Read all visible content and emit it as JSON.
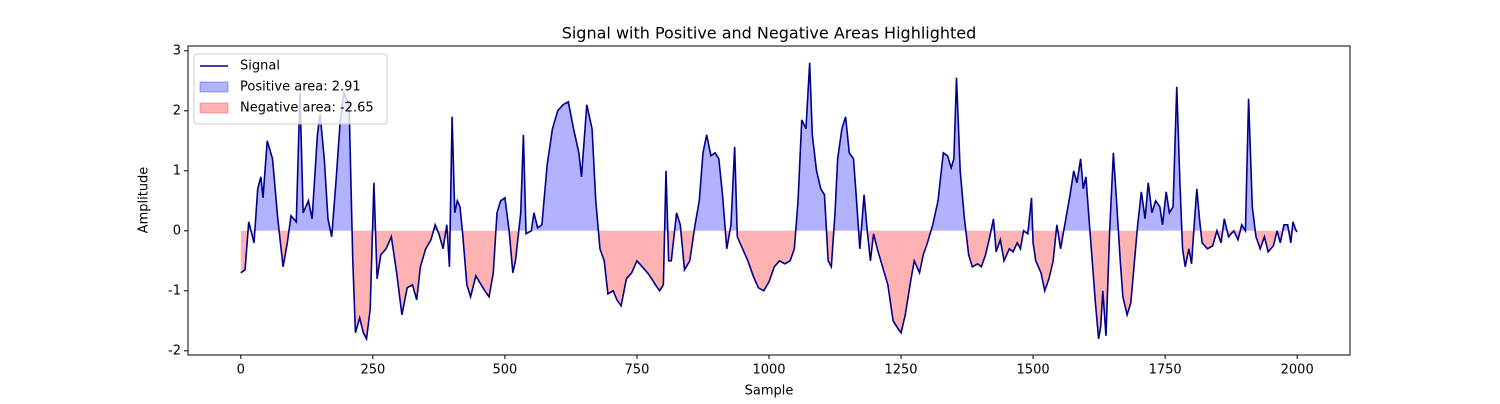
{
  "chart_data": {
    "type": "line",
    "title": "Signal with Positive and Negative Areas Highlighted",
    "x_label": "Sample",
    "y_label": "Amplitude",
    "xlim": [
      -100,
      2100
    ],
    "ylim": [
      -2.07,
      3.08
    ],
    "xticks": [
      0,
      250,
      500,
      750,
      1000,
      1250,
      1500,
      1750,
      2000
    ],
    "yticks": [
      -2,
      -1,
      0,
      1,
      2,
      3
    ],
    "legend": "upper left",
    "x": [
      0,
      8,
      15,
      25,
      32,
      38,
      42,
      50,
      60,
      70,
      80,
      88,
      95,
      105,
      112,
      118,
      128,
      135,
      145,
      150,
      158,
      165,
      172,
      180,
      188,
      195,
      205,
      212,
      217,
      225,
      232,
      238,
      245,
      252,
      258,
      265,
      275,
      285,
      295,
      305,
      315,
      325,
      333,
      340,
      350,
      360,
      368,
      375,
      383,
      390,
      395,
      400,
      405,
      410,
      415,
      420,
      428,
      435,
      445,
      455,
      462,
      470,
      478,
      485,
      492,
      500,
      508,
      515,
      520,
      530,
      535,
      540,
      550,
      555,
      562,
      570,
      580,
      590,
      600,
      610,
      620,
      630,
      640,
      645,
      655,
      665,
      672,
      680,
      688,
      695,
      705,
      712,
      720,
      730,
      740,
      750,
      760,
      770,
      778,
      785,
      793,
      800,
      805,
      810,
      815,
      825,
      832,
      840,
      850,
      860,
      868,
      875,
      882,
      890,
      898,
      905,
      912,
      920,
      928,
      935,
      940,
      950,
      960,
      970,
      980,
      990,
      1000,
      1010,
      1020,
      1030,
      1040,
      1048,
      1055,
      1062,
      1070,
      1077,
      1082,
      1090,
      1098,
      1105,
      1112,
      1118,
      1125,
      1130,
      1138,
      1145,
      1152,
      1160,
      1165,
      1172,
      1180,
      1186,
      1192,
      1198,
      1205,
      1215,
      1225,
      1235,
      1242,
      1250,
      1258,
      1268,
      1275,
      1285,
      1292,
      1300,
      1310,
      1320,
      1330,
      1338,
      1345,
      1350,
      1355,
      1362,
      1370,
      1378,
      1385,
      1395,
      1402,
      1410,
      1418,
      1425,
      1430,
      1438,
      1445,
      1455,
      1462,
      1470,
      1476,
      1482,
      1490,
      1497,
      1500,
      1505,
      1515,
      1522,
      1530,
      1538,
      1545,
      1552,
      1560,
      1570,
      1577,
      1583,
      1590,
      1595,
      1600,
      1605,
      1612,
      1618,
      1624,
      1628,
      1632,
      1638,
      1645,
      1652,
      1658,
      1665,
      1670,
      1678,
      1685,
      1692,
      1698,
      1705,
      1712,
      1718,
      1725,
      1732,
      1740,
      1745,
      1752,
      1758,
      1765,
      1772,
      1778,
      1783,
      1788,
      1795,
      1800,
      1805,
      1810,
      1815,
      1820,
      1830,
      1840,
      1848,
      1856,
      1862,
      1870,
      1880,
      1888,
      1895,
      1902,
      1908,
      1915,
      1922,
      1930,
      1938,
      1945,
      1955,
      1962,
      1968,
      1975,
      1982,
      1988,
      1992,
      1998,
      2000
    ],
    "series": [
      {
        "name": "Signal",
        "color": "#00008b",
        "values": [
          -0.7,
          -0.65,
          0.15,
          -0.2,
          0.7,
          0.9,
          0.55,
          1.5,
          1.2,
          0.2,
          -0.6,
          -0.2,
          0.25,
          0.15,
          2.3,
          0.3,
          0.5,
          0.2,
          1.6,
          1.95,
          1.2,
          0.2,
          -0.1,
          0.8,
          1.8,
          2.3,
          2.1,
          -0.5,
          -1.7,
          -1.45,
          -1.7,
          -1.8,
          -1.3,
          0.8,
          -0.8,
          -0.4,
          -0.3,
          -0.1,
          -0.7,
          -1.4,
          -0.95,
          -0.9,
          -1.15,
          -0.6,
          -0.3,
          -0.15,
          0.1,
          -0.05,
          -0.3,
          0.1,
          -0.6,
          1.9,
          0.3,
          0.5,
          0.4,
          -0.05,
          -0.9,
          -1.1,
          -0.75,
          -0.9,
          -1.0,
          -1.1,
          -0.7,
          0.3,
          0.5,
          0.55,
          0.0,
          -0.7,
          -0.5,
          0.3,
          1.6,
          -0.05,
          0.0,
          0.3,
          0.05,
          0.1,
          1.1,
          1.7,
          2.0,
          2.1,
          2.15,
          1.7,
          1.3,
          0.9,
          2.1,
          1.7,
          0.5,
          -0.3,
          -0.5,
          -1.05,
          -1.0,
          -1.15,
          -1.25,
          -0.8,
          -0.7,
          -0.5,
          -0.6,
          -0.7,
          -0.8,
          -0.9,
          -1.0,
          -0.9,
          1.0,
          -0.5,
          -0.5,
          0.3,
          0.1,
          -0.65,
          -0.5,
          0.1,
          0.5,
          1.3,
          1.6,
          1.25,
          1.3,
          1.2,
          0.6,
          -0.3,
          0.1,
          1.4,
          -0.1,
          -0.3,
          -0.5,
          -0.75,
          -0.95,
          -1.0,
          -0.85,
          -0.6,
          -0.5,
          -0.55,
          -0.5,
          -0.3,
          0.5,
          1.85,
          1.7,
          2.8,
          1.6,
          1.0,
          0.7,
          0.6,
          -0.5,
          -0.6,
          0.3,
          1.2,
          1.7,
          1.9,
          1.3,
          1.2,
          0.6,
          -0.3,
          0.6,
          0.0,
          -0.5,
          -0.05,
          -0.3,
          -0.6,
          -0.9,
          -1.5,
          -1.6,
          -1.7,
          -1.4,
          -0.85,
          -0.5,
          -0.7,
          -0.4,
          -0.2,
          0.1,
          0.5,
          1.3,
          1.25,
          1.05,
          1.2,
          2.55,
          1.0,
          0.2,
          -0.4,
          -0.6,
          -0.55,
          -0.6,
          -0.4,
          -0.1,
          0.2,
          -0.35,
          -0.15,
          -0.5,
          -0.3,
          -0.35,
          -0.2,
          -0.3,
          0.0,
          -0.05,
          0.55,
          -0.2,
          -0.5,
          -0.7,
          -1.0,
          -0.8,
          -0.5,
          0.1,
          -0.3,
          0.1,
          0.6,
          1.0,
          0.8,
          1.2,
          0.7,
          0.9,
          0.3,
          -0.5,
          -1.2,
          -1.8,
          -1.6,
          -1.0,
          -1.75,
          0.0,
          1.3,
          0.5,
          -0.5,
          -1.1,
          -1.4,
          -1.2,
          -0.5,
          0.1,
          0.65,
          0.2,
          0.8,
          0.3,
          0.5,
          0.4,
          0.1,
          0.65,
          0.3,
          0.4,
          2.4,
          0.8,
          -0.3,
          -0.6,
          -0.3,
          -0.55,
          0.1,
          0.7,
          0.2,
          -0.2,
          -0.3,
          -0.25,
          0.0,
          -0.2,
          0.2,
          -0.1,
          0.0,
          -0.15,
          0.1,
          0.0,
          2.2,
          0.4,
          -0.1,
          -0.3,
          -0.1,
          -0.35,
          -0.25,
          0.0,
          -0.2,
          0.1,
          0.1,
          -0.2,
          0.15,
          0.0,
          -0.02
        ]
      }
    ],
    "fills": [
      {
        "name": "Positive area: 2.91",
        "color": "#0000ff",
        "opacity": 0.3,
        "where": "positive"
      },
      {
        "name": "Negative area: -2.65",
        "color": "#ff0000",
        "opacity": 0.3,
        "where": "negative"
      }
    ]
  }
}
